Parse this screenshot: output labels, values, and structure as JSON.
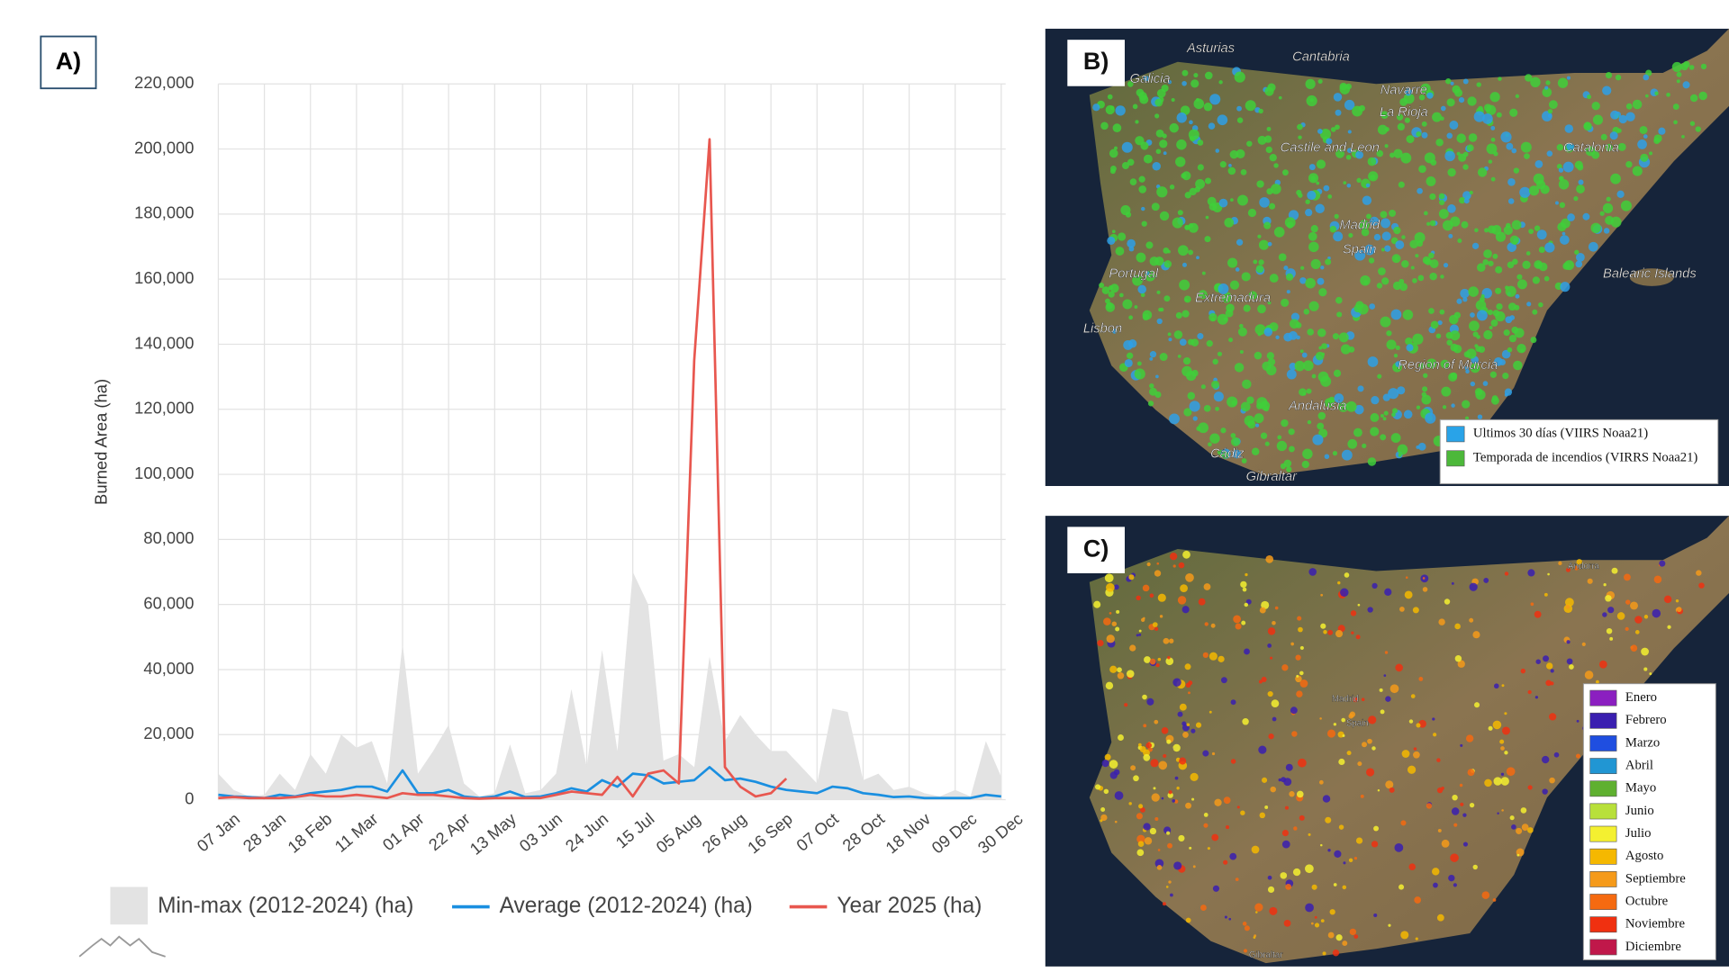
{
  "chart_data": {
    "type": "area-line",
    "panel_label": "A)",
    "y_label": "Burned Area (ha)",
    "categories": [
      "07 Jan",
      null,
      null,
      "28 Jan",
      null,
      null,
      "18 Feb",
      null,
      null,
      "11 Mar",
      null,
      null,
      "01 Apr",
      null,
      null,
      "22 Apr",
      null,
      null,
      "13 May",
      null,
      null,
      "03 Jun",
      null,
      null,
      "24 Jun",
      null,
      null,
      "15 Jul",
      null,
      null,
      "05 Aug",
      null,
      null,
      "26 Aug",
      null,
      null,
      "16 Sep",
      null,
      null,
      "07 Oct",
      null,
      null,
      "28 Oct",
      null,
      null,
      "18 Nov",
      null,
      null,
      "09 Dec",
      null,
      null,
      "30 Dec"
    ],
    "series": [
      {
        "name": "Min-max (2012-2024) (ha)",
        "kind": "area",
        "color": "#e3e3e3",
        "values": [
          8000,
          3000,
          1000,
          1500,
          8000,
          3000,
          14000,
          8000,
          20000,
          16000,
          18000,
          5000,
          48000,
          8000,
          15000,
          23000,
          5000,
          1000,
          2000,
          17000,
          2000,
          3000,
          8000,
          34000,
          10000,
          46000,
          15000,
          70000,
          60000,
          12000,
          14000,
          10000,
          44000,
          18000,
          26000,
          20000,
          15000,
          15000,
          10000,
          5000,
          28000,
          27000,
          6000,
          8000,
          3000,
          4000,
          2000,
          1000,
          3000,
          1000,
          18000,
          7000
        ]
      },
      {
        "name": "Average (2012-2024) (ha)",
        "kind": "line",
        "color": "#1a8fe0",
        "values": [
          1500,
          1000,
          800,
          500,
          1500,
          1000,
          2000,
          2500,
          3000,
          4000,
          4000,
          2500,
          9000,
          2000,
          2000,
          3000,
          1000,
          500,
          1000,
          2500,
          800,
          1000,
          2000,
          3500,
          2500,
          6000,
          4000,
          8000,
          7500,
          5000,
          5500,
          6000,
          10000,
          6000,
          6500,
          5500,
          4000,
          3000,
          2500,
          2000,
          4000,
          3500,
          2000,
          1500,
          800,
          1000,
          500,
          500,
          500,
          500,
          1500,
          1000
        ]
      },
      {
        "name": "Year 2025 (ha)",
        "kind": "line",
        "color": "#e8574f",
        "values": [
          500,
          800,
          500,
          500,
          500,
          800,
          1500,
          1000,
          1000,
          1500,
          1000,
          500,
          2000,
          1500,
          1500,
          1000,
          500,
          300,
          500,
          500,
          500,
          500,
          1500,
          2500,
          2000,
          1500,
          7000,
          1000,
          8000,
          9000,
          5000,
          135000,
          203000,
          10000,
          4000,
          1000,
          2000,
          6500,
          null,
          null,
          null,
          null,
          null,
          null,
          null,
          null,
          null,
          null,
          null,
          null,
          null,
          null
        ]
      }
    ],
    "ylim": [
      0,
      220000
    ],
    "yticks": [
      0,
      {
        "value": 20000,
        "label": "20,000"
      },
      {
        "value": 40000,
        "label": "40,000"
      },
      {
        "value": 60000,
        "label": "60,000"
      },
      {
        "value": 80000,
        "label": "80,000"
      },
      {
        "value": 100000,
        "label": "100,000"
      },
      {
        "value": 120000,
        "label": "120,000"
      },
      {
        "value": 140000,
        "label": "140,000"
      },
      {
        "value": 160000,
        "label": "160,000"
      },
      {
        "value": 180000,
        "label": "180,000"
      },
      {
        "value": 200000,
        "label": "200,000"
      },
      {
        "value": 220000,
        "label": "220,000"
      }
    ],
    "grid": true
  },
  "maps": [
    {
      "panel_label": "B)",
      "places": [
        "Asturias",
        "Cantabria",
        "Galicia",
        "Navarre",
        "La Rioja",
        "Castile and Leon",
        "Catalonia",
        "Madrid",
        "Spain",
        "Portugal",
        "Extremadura",
        "Lisbon",
        "Balearic Islands",
        "Region of Murcia",
        "Andalusia",
        "Cádiz",
        "Gibraltar"
      ],
      "legend": [
        {
          "name": "Ultimos 30 días (VIIRS Noaa21)",
          "color": "#29a3e8"
        },
        {
          "name": "Temporada de incendios (VIRRS Noaa21)",
          "color": "#4cb83a"
        }
      ]
    },
    {
      "panel_label": "C)",
      "places": [
        "Andorra",
        "Madrid",
        "Spain",
        "Gibraltar"
      ],
      "legend": [
        {
          "name": "Enero",
          "color": "#8b1fc0"
        },
        {
          "name": "Febrero",
          "color": "#3a1fb0"
        },
        {
          "name": "Marzo",
          "color": "#1f4ee0"
        },
        {
          "name": "Abril",
          "color": "#2196d3"
        },
        {
          "name": "Mayo",
          "color": "#5fb030"
        },
        {
          "name": "Junio",
          "color": "#b8e03a"
        },
        {
          "name": "Julio",
          "color": "#f4f030"
        },
        {
          "name": "Agosto",
          "color": "#f5b800"
        },
        {
          "name": "Septiembre",
          "color": "#f59a1a"
        },
        {
          "name": "Octubre",
          "color": "#f56a10"
        },
        {
          "name": "Noviembre",
          "color": "#f03010"
        },
        {
          "name": "Diciembre",
          "color": "#c0184a"
        }
      ]
    }
  ]
}
